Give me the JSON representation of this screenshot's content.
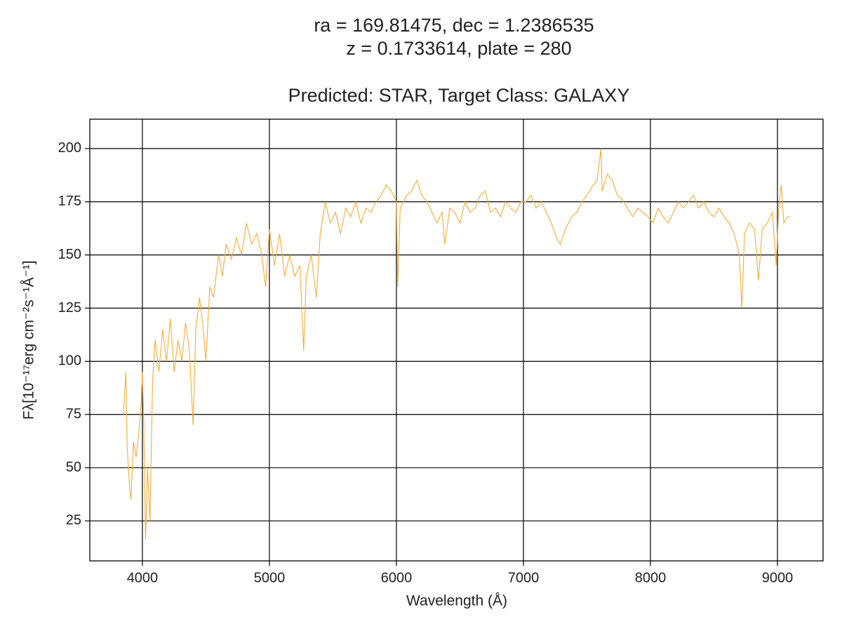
{
  "chart_data": {
    "type": "line",
    "suptitle": [
      "ra = 169.81475, dec = 1.2386535",
      "z = 0.1733614, plate = 280"
    ],
    "title": "Predicted: STAR, Target Class: GALAXY",
    "xlabel": "Wavelength (Å)",
    "ylabel": "Fλ[10⁻¹⁷erg cm⁻²s⁻¹Å⁻¹]",
    "xlim": [
      3586,
      9359
    ],
    "ylim": [
      6.2,
      213.8
    ],
    "xticks": [
      4000,
      5000,
      6000,
      7000,
      8000,
      9000
    ],
    "yticks": [
      25,
      50,
      75,
      100,
      125,
      150,
      175,
      200
    ],
    "grid": true,
    "series": [
      {
        "color": "#f0ad3c",
        "x": [
          3850,
          3870,
          3880,
          3900,
          3910,
          3930,
          3950,
          3970,
          3990,
          4000,
          4010,
          4025,
          4040,
          4060,
          4080,
          4100,
          4130,
          4160,
          4190,
          4220,
          4250,
          4280,
          4310,
          4340,
          4370,
          4400,
          4420,
          4450,
          4480,
          4500,
          4530,
          4560,
          4600,
          4630,
          4660,
          4700,
          4740,
          4780,
          4820,
          4860,
          4900,
          4940,
          4970,
          5000,
          5040,
          5080,
          5120,
          5160,
          5200,
          5240,
          5270,
          5290,
          5330,
          5370,
          5400,
          5440,
          5480,
          5520,
          5560,
          5600,
          5640,
          5680,
          5720,
          5760,
          5800,
          5840,
          5880,
          5920,
          5960,
          6000,
          6010,
          6030,
          6080,
          6120,
          6160,
          6200,
          6240,
          6280,
          6320,
          6360,
          6380,
          6420,
          6460,
          6500,
          6540,
          6580,
          6620,
          6660,
          6700,
          6740,
          6780,
          6820,
          6860,
          6900,
          6940,
          6980,
          7020,
          7060,
          7100,
          7140,
          7180,
          7220,
          7260,
          7290,
          7330,
          7380,
          7420,
          7460,
          7500,
          7540,
          7580,
          7610,
          7620,
          7660,
          7700,
          7740,
          7780,
          7820,
          7860,
          7900,
          7940,
          7980,
          8020,
          8060,
          8100,
          8140,
          8180,
          8220,
          8260,
          8300,
          8340,
          8380,
          8420,
          8460,
          8500,
          8540,
          8580,
          8620,
          8660,
          8700,
          8720,
          8740,
          8780,
          8820,
          8850,
          8880,
          8920,
          8960,
          8990,
          9010,
          9030,
          9050,
          9080,
          9100
        ],
        "values": [
          75,
          95,
          60,
          40,
          35,
          62,
          55,
          65,
          80,
          95,
          72,
          16,
          50,
          25,
          90,
          110,
          95,
          115,
          100,
          120,
          95,
          110,
          100,
          118,
          105,
          70,
          115,
          130,
          115,
          100,
          135,
          130,
          150,
          140,
          155,
          148,
          158,
          150,
          165,
          155,
          160,
          150,
          135,
          162,
          145,
          160,
          140,
          150,
          140,
          145,
          105,
          140,
          150,
          130,
          160,
          175,
          165,
          170,
          160,
          172,
          168,
          175,
          165,
          172,
          170,
          175,
          178,
          183,
          180,
          175,
          135,
          172,
          178,
          180,
          185,
          178,
          175,
          170,
          165,
          170,
          155,
          172,
          170,
          165,
          175,
          170,
          172,
          178,
          180,
          170,
          172,
          168,
          175,
          172,
          170,
          175,
          175,
          178,
          172,
          175,
          170,
          165,
          158,
          155,
          162,
          168,
          170,
          175,
          178,
          182,
          185,
          200,
          180,
          188,
          185,
          178,
          176,
          172,
          168,
          172,
          170,
          168,
          165,
          172,
          168,
          165,
          170,
          175,
          172,
          175,
          178,
          172,
          175,
          170,
          168,
          172,
          168,
          165,
          160,
          150,
          125,
          160,
          165,
          162,
          138,
          162,
          165,
          170,
          145,
          172,
          183,
          165,
          168,
          168
        ]
      }
    ]
  }
}
